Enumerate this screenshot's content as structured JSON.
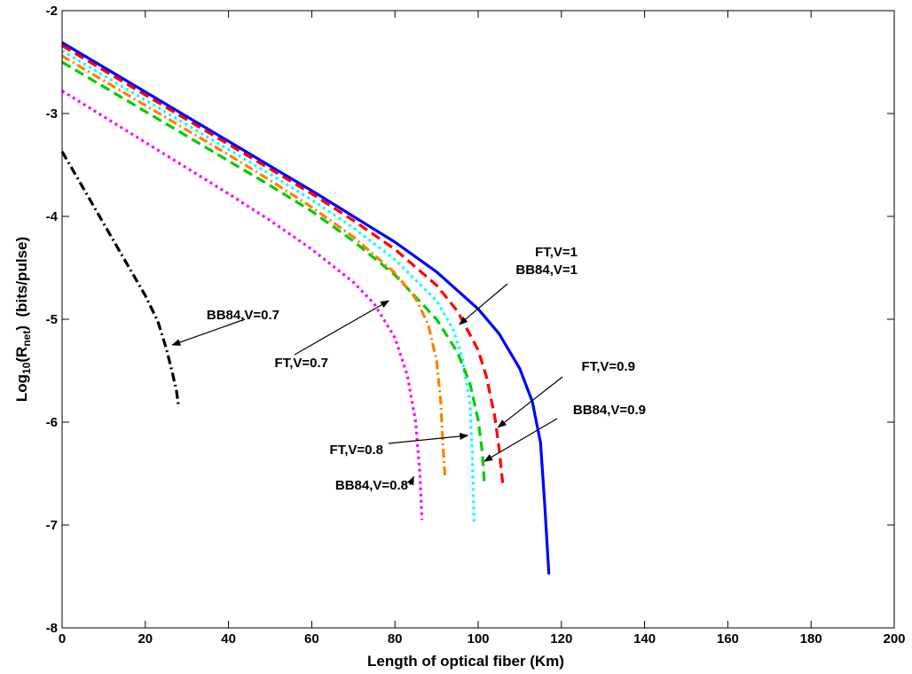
{
  "chart_data": {
    "type": "line",
    "title": "",
    "xlabel": "Length of optical fiber (Km)",
    "ylabel": {
      "prefix": "Log",
      "sub1": "10",
      "mid": "(R",
      "sub2": "net",
      "suffix": ")  (bits/pulse)"
    },
    "xlim": [
      0,
      200
    ],
    "ylim": [
      -8,
      -2
    ],
    "x_ticks": [
      "0",
      "20",
      "40",
      "60",
      "80",
      "100",
      "120",
      "140",
      "160",
      "180",
      "200"
    ],
    "y_ticks": [
      "-2",
      "-3",
      "-4",
      "-5",
      "-6",
      "-7",
      "-8"
    ],
    "grid": false,
    "series": [
      {
        "name": "FT,V=1 / BB84,V=1",
        "color": "#0000ff",
        "style": "solid",
        "points": [
          [
            0,
            -2.31
          ],
          [
            10,
            -2.55
          ],
          [
            20,
            -2.79
          ],
          [
            30,
            -3.03
          ],
          [
            40,
            -3.27
          ],
          [
            50,
            -3.51
          ],
          [
            60,
            -3.75
          ],
          [
            70,
            -4.0
          ],
          [
            80,
            -4.25
          ],
          [
            90,
            -4.54
          ],
          [
            100,
            -4.9
          ],
          [
            105,
            -5.14
          ],
          [
            110,
            -5.48
          ],
          [
            113,
            -5.8
          ],
          [
            115,
            -6.2
          ],
          [
            116,
            -6.8
          ],
          [
            117,
            -7.48
          ]
        ]
      },
      {
        "name": "FT,V=0.9",
        "color": "#ff0000",
        "style": "dashed",
        "points": [
          [
            0,
            -2.34
          ],
          [
            10,
            -2.58
          ],
          [
            20,
            -2.82
          ],
          [
            30,
            -3.06
          ],
          [
            40,
            -3.3
          ],
          [
            50,
            -3.54
          ],
          [
            60,
            -3.78
          ],
          [
            70,
            -4.04
          ],
          [
            80,
            -4.32
          ],
          [
            90,
            -4.67
          ],
          [
            95,
            -4.92
          ],
          [
            100,
            -5.3
          ],
          [
            102,
            -5.56
          ],
          [
            104,
            -5.95
          ],
          [
            105,
            -6.25
          ],
          [
            106,
            -6.63
          ]
        ]
      },
      {
        "name": "FT,V=0.8",
        "color": "#00ffff",
        "style": "dotted",
        "points": [
          [
            0,
            -2.39
          ],
          [
            10,
            -2.63
          ],
          [
            20,
            -2.87
          ],
          [
            30,
            -3.11
          ],
          [
            40,
            -3.35
          ],
          [
            50,
            -3.59
          ],
          [
            60,
            -3.84
          ],
          [
            70,
            -4.11
          ],
          [
            80,
            -4.42
          ],
          [
            90,
            -4.82
          ],
          [
            94,
            -5.1
          ],
          [
            96,
            -5.35
          ],
          [
            98,
            -5.8
          ],
          [
            98.6,
            -6.3
          ],
          [
            99,
            -6.97
          ]
        ]
      },
      {
        "name": "BB84,V=0.9",
        "color": "#00cc00",
        "style": "dashed",
        "points": [
          [
            0,
            -2.5
          ],
          [
            10,
            -2.74
          ],
          [
            20,
            -2.98
          ],
          [
            30,
            -3.22
          ],
          [
            40,
            -3.46
          ],
          [
            50,
            -3.7
          ],
          [
            60,
            -3.95
          ],
          [
            70,
            -4.24
          ],
          [
            80,
            -4.57
          ],
          [
            90,
            -5.0
          ],
          [
            95,
            -5.32
          ],
          [
            98,
            -5.62
          ],
          [
            100,
            -5.98
          ],
          [
            101,
            -6.3
          ],
          [
            101.5,
            -6.6
          ]
        ]
      },
      {
        "name": "FT,V=0.7",
        "color": "#ff8000",
        "style": "dashdot",
        "points": [
          [
            0,
            -2.44
          ],
          [
            10,
            -2.68
          ],
          [
            20,
            -2.92
          ],
          [
            30,
            -3.16
          ],
          [
            40,
            -3.4
          ],
          [
            50,
            -3.65
          ],
          [
            60,
            -3.91
          ],
          [
            70,
            -4.2
          ],
          [
            80,
            -4.55
          ],
          [
            85,
            -4.8
          ],
          [
            88,
            -5.05
          ],
          [
            90,
            -5.4
          ],
          [
            91,
            -5.8
          ],
          [
            91.5,
            -6.2
          ],
          [
            92,
            -6.52
          ]
        ]
      },
      {
        "name": "BB84,V=0.8",
        "color": "#ff00ff",
        "style": "dotted",
        "points": [
          [
            0,
            -2.78
          ],
          [
            10,
            -3.03
          ],
          [
            20,
            -3.28
          ],
          [
            30,
            -3.53
          ],
          [
            40,
            -3.78
          ],
          [
            50,
            -4.04
          ],
          [
            60,
            -4.32
          ],
          [
            70,
            -4.64
          ],
          [
            75,
            -4.85
          ],
          [
            80,
            -5.18
          ],
          [
            83,
            -5.55
          ],
          [
            85,
            -6.0
          ],
          [
            86,
            -6.5
          ],
          [
            86.5,
            -6.95
          ]
        ]
      },
      {
        "name": "BB84,V=0.7",
        "color": "#000000",
        "style": "dashdot",
        "points": [
          [
            0,
            -3.37
          ],
          [
            5,
            -3.72
          ],
          [
            10,
            -4.07
          ],
          [
            15,
            -4.42
          ],
          [
            20,
            -4.77
          ],
          [
            23,
            -5.02
          ],
          [
            25,
            -5.28
          ],
          [
            26.5,
            -5.52
          ],
          [
            27.5,
            -5.7
          ],
          [
            28,
            -5.85
          ]
        ]
      }
    ],
    "annotations": [
      {
        "lines": [
          "FT,V=1",
          "BB84,V=1"
        ],
        "arrow_to": [
          95.5,
          -5.05
        ]
      },
      {
        "lines": [
          "FT,V=0.9"
        ],
        "arrow_to": [
          104.8,
          -6.05
        ]
      },
      {
        "lines": [
          "BB84,V=0.9"
        ],
        "arrow_to": [
          101.5,
          -6.38
        ]
      },
      {
        "lines": [
          "FT,V=0.8"
        ],
        "arrow_to": [
          97.5,
          -6.13
        ]
      },
      {
        "lines": [
          "BB84,V=0.8"
        ],
        "arrow_to": [
          84.5,
          -6.53
        ]
      },
      {
        "lines": [
          "FT,V=0.7"
        ],
        "arrow_to": [
          78.5,
          -4.82
        ]
      },
      {
        "lines": [
          "BB84,V=0.7"
        ],
        "arrow_to": [
          26.5,
          -5.25
        ]
      }
    ]
  }
}
